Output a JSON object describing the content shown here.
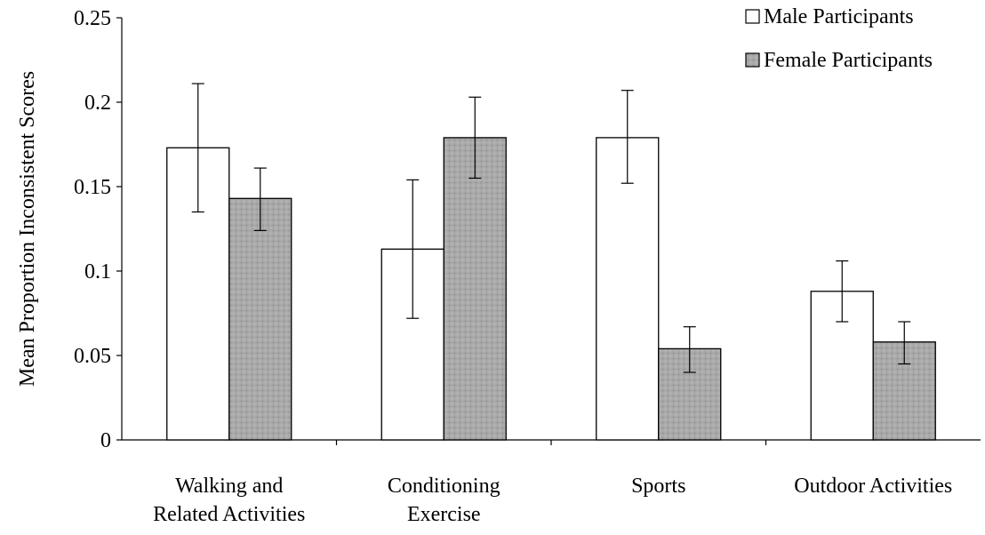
{
  "chart_data": {
    "type": "bar",
    "title": "",
    "xlabel": "",
    "ylabel": "Mean Proportion Inconsistent Scores",
    "ylim": [
      0,
      0.25
    ],
    "yticks": [
      {
        "value": 0,
        "label": "0"
      },
      {
        "value": 0.05,
        "label": "0.05"
      },
      {
        "value": 0.1,
        "label": "0.1"
      },
      {
        "value": 0.15,
        "label": "0.15"
      },
      {
        "value": 0.2,
        "label": "0.2"
      },
      {
        "value": 0.25,
        "label": "0.25"
      }
    ],
    "categories": [
      [
        "Walking and",
        "Related Activities"
      ],
      [
        "Conditioning",
        "Exercise"
      ],
      [
        "Sports"
      ],
      [
        "Outdoor Activities"
      ]
    ],
    "series": [
      {
        "name": "Male Participants",
        "fill": "#ffffff",
        "values": [
          0.173,
          0.113,
          0.179,
          0.088
        ],
        "error_low": [
          0.135,
          0.072,
          0.152,
          0.07
        ],
        "error_high": [
          0.211,
          0.154,
          0.207,
          0.106
        ]
      },
      {
        "name": "Female Participants",
        "fill": "#a9a9a9",
        "values": [
          0.143,
          0.179,
          0.054,
          0.058
        ],
        "error_low": [
          0.124,
          0.155,
          0.04,
          0.045
        ],
        "error_high": [
          0.161,
          0.203,
          0.067,
          0.07
        ]
      }
    ],
    "grid": false,
    "legend": "top-right"
  }
}
